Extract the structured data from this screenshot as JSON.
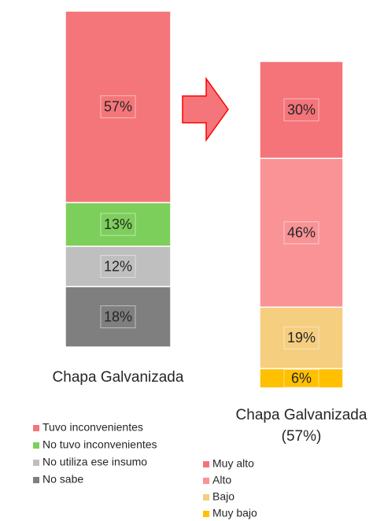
{
  "chart_data": [
    {
      "type": "stacked_bar",
      "categories": [
        "Chapa Galvanizada"
      ],
      "series": [
        {
          "name": "Tuvo inconvenientes",
          "color": "#f4767a",
          "values": [
            57
          ],
          "value_labels": [
            "57%"
          ]
        },
        {
          "name": "No tuvo inconvenientes",
          "color": "#7dcf5b",
          "values": [
            13
          ],
          "value_labels": [
            "13%"
          ]
        },
        {
          "name": "No utiliza ese insumo",
          "color": "#bfbfbf",
          "values": [
            12
          ],
          "value_labels": [
            "12%"
          ]
        },
        {
          "name": "No sabe",
          "color": "#7f7f7f",
          "values": [
            18
          ],
          "value_labels": [
            "18%"
          ]
        }
      ]
    },
    {
      "type": "stacked_bar",
      "categories": [
        "Chapa Galvanizada (57%)"
      ],
      "series": [
        {
          "name": "Muy alto",
          "color": "#f4747a",
          "values": [
            30
          ],
          "value_labels": [
            "30%"
          ]
        },
        {
          "name": "Alto",
          "color": "#f99396",
          "values": [
            46
          ],
          "value_labels": [
            "46%"
          ]
        },
        {
          "name": "Bajo",
          "color": "#f5ce80",
          "values": [
            19
          ],
          "value_labels": [
            "19%"
          ]
        },
        {
          "name": "Muy bajo",
          "color": "#ffc000",
          "values": [
            6
          ],
          "value_labels": [
            "6%"
          ]
        }
      ]
    }
  ]
}
